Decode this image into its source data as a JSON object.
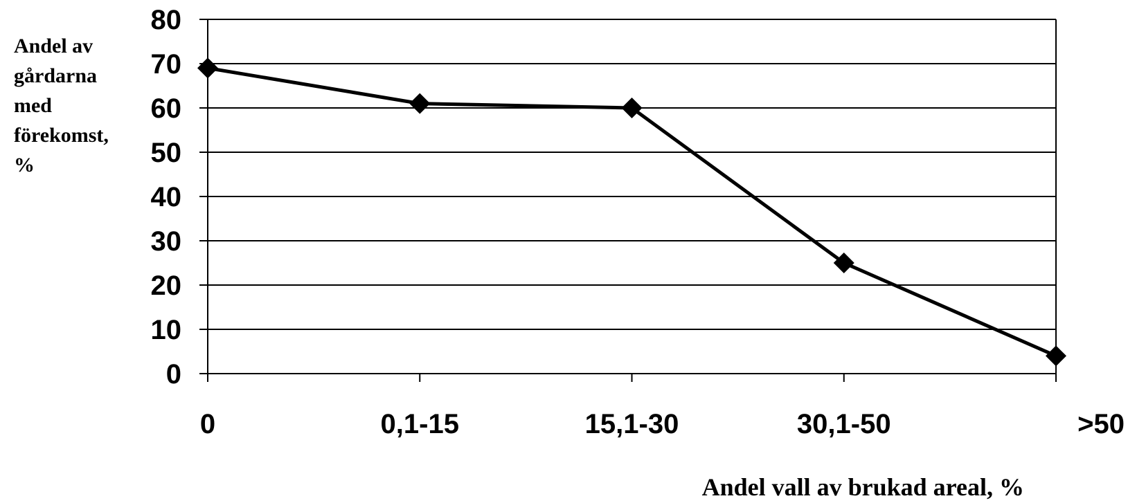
{
  "chart_data": {
    "type": "line",
    "title": "",
    "ylabel_lines": [
      "Andel av",
      "gårdarna",
      "med",
      "förekomst,",
      "%"
    ],
    "xlabel": "Andel vall av brukad areal, %",
    "categories": [
      "0",
      "0,1-15",
      "15,1-30",
      "30,1-50",
      ">50"
    ],
    "series": [
      {
        "values": [
          69,
          61,
          60,
          25,
          4
        ]
      }
    ],
    "ylim": [
      0,
      80
    ],
    "yticks": [
      "0",
      "10",
      "20",
      "30",
      "40",
      "50",
      "60",
      "70",
      "80"
    ],
    "grid": "horizontal",
    "legend": "none",
    "line_color": "#000000",
    "marker": "diamond"
  }
}
